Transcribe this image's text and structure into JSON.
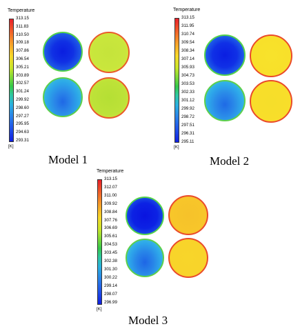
{
  "panels": [
    {
      "legend_title": "Temperature",
      "ticks": [
        "313.15",
        "311.83",
        "310.50",
        "309.18",
        "307.86",
        "306.54",
        "305.21",
        "303.89",
        "302.57",
        "301.24",
        "299.92",
        "298.60",
        "297.27",
        "295.95",
        "294.63",
        "293.31"
      ],
      "unit": "[K]",
      "label": "Model 1",
      "discs": [
        {
          "position": "top-left",
          "description_color": "#1a3fe6"
        },
        {
          "position": "top-right",
          "description_color": "#c7e63a"
        },
        {
          "position": "bottom-left",
          "description_color": "#2aa5e8"
        },
        {
          "position": "bottom-right",
          "description_color": "#bfe233"
        }
      ]
    },
    {
      "legend_title": "Temperature",
      "ticks": [
        "313.15",
        "311.95",
        "310.74",
        "309.54",
        "308.34",
        "307.14",
        "305.93",
        "304.73",
        "303.53",
        "302.33",
        "301.12",
        "299.92",
        "298.72",
        "297.51",
        "296.31",
        "295.11"
      ],
      "unit": "[K]",
      "label": "Model 2",
      "discs": [
        {
          "position": "top-left",
          "description_color": "#1438e8"
        },
        {
          "position": "top-right",
          "description_color": "#f7e02b"
        },
        {
          "position": "bottom-left",
          "description_color": "#33a8ea"
        },
        {
          "position": "bottom-right",
          "description_color": "#f6de2a"
        }
      ]
    },
    {
      "legend_title": "Temperature",
      "ticks": [
        "313.15",
        "312.07",
        "311.00",
        "309.92",
        "308.84",
        "307.76",
        "306.69",
        "305.61",
        "304.53",
        "303.45",
        "302.38",
        "301.30",
        "300.22",
        "299.14",
        "298.07",
        "296.99"
      ],
      "unit": "[K]",
      "label": "Model 3",
      "discs": [
        {
          "position": "top-left",
          "description_color": "#1030e8"
        },
        {
          "position": "top-right",
          "description_color": "#f7c02a"
        },
        {
          "position": "bottom-left",
          "description_color": "#30a6ea"
        },
        {
          "position": "bottom-right",
          "description_color": "#f8d52a"
        }
      ]
    }
  ]
}
